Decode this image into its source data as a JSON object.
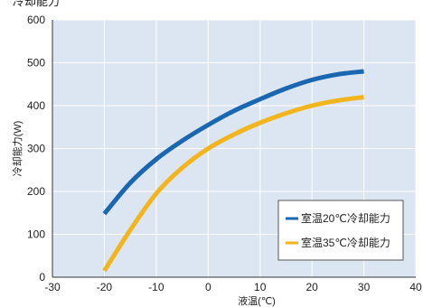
{
  "top_title": "冷却能力",
  "chart_data": {
    "type": "line",
    "xlabel": "液温(℃)",
    "ylabel": "冷却能力(W)",
    "xlim": [
      -30,
      40
    ],
    "ylim": [
      0,
      600
    ],
    "x_ticks": [
      -30,
      -20,
      -10,
      0,
      10,
      20,
      30,
      40
    ],
    "y_ticks": [
      0,
      100,
      200,
      300,
      400,
      500,
      600
    ],
    "grid": true,
    "legend_position": "bottom-right",
    "series": [
      {
        "name": "室温20℃冷却能力",
        "color": "#1a66b0",
        "x": [
          -20,
          -15,
          -10,
          -5,
          0,
          5,
          10,
          15,
          20,
          25,
          30
        ],
        "y": [
          148,
          220,
          275,
          318,
          355,
          388,
          415,
          440,
          460,
          473,
          480
        ]
      },
      {
        "name": "室温35℃冷却能力",
        "color": "#f2b51e",
        "x": [
          -20,
          -15,
          -10,
          -5,
          0,
          5,
          10,
          15,
          20,
          25,
          30
        ],
        "y": [
          15,
          110,
          195,
          255,
          300,
          333,
          360,
          382,
          400,
          412,
          420
        ]
      }
    ]
  },
  "colors": {
    "plot_background": "#dce6f2",
    "grid": "#ffffff",
    "legend_background": "#ffffff",
    "legend_border": "#555555"
  }
}
